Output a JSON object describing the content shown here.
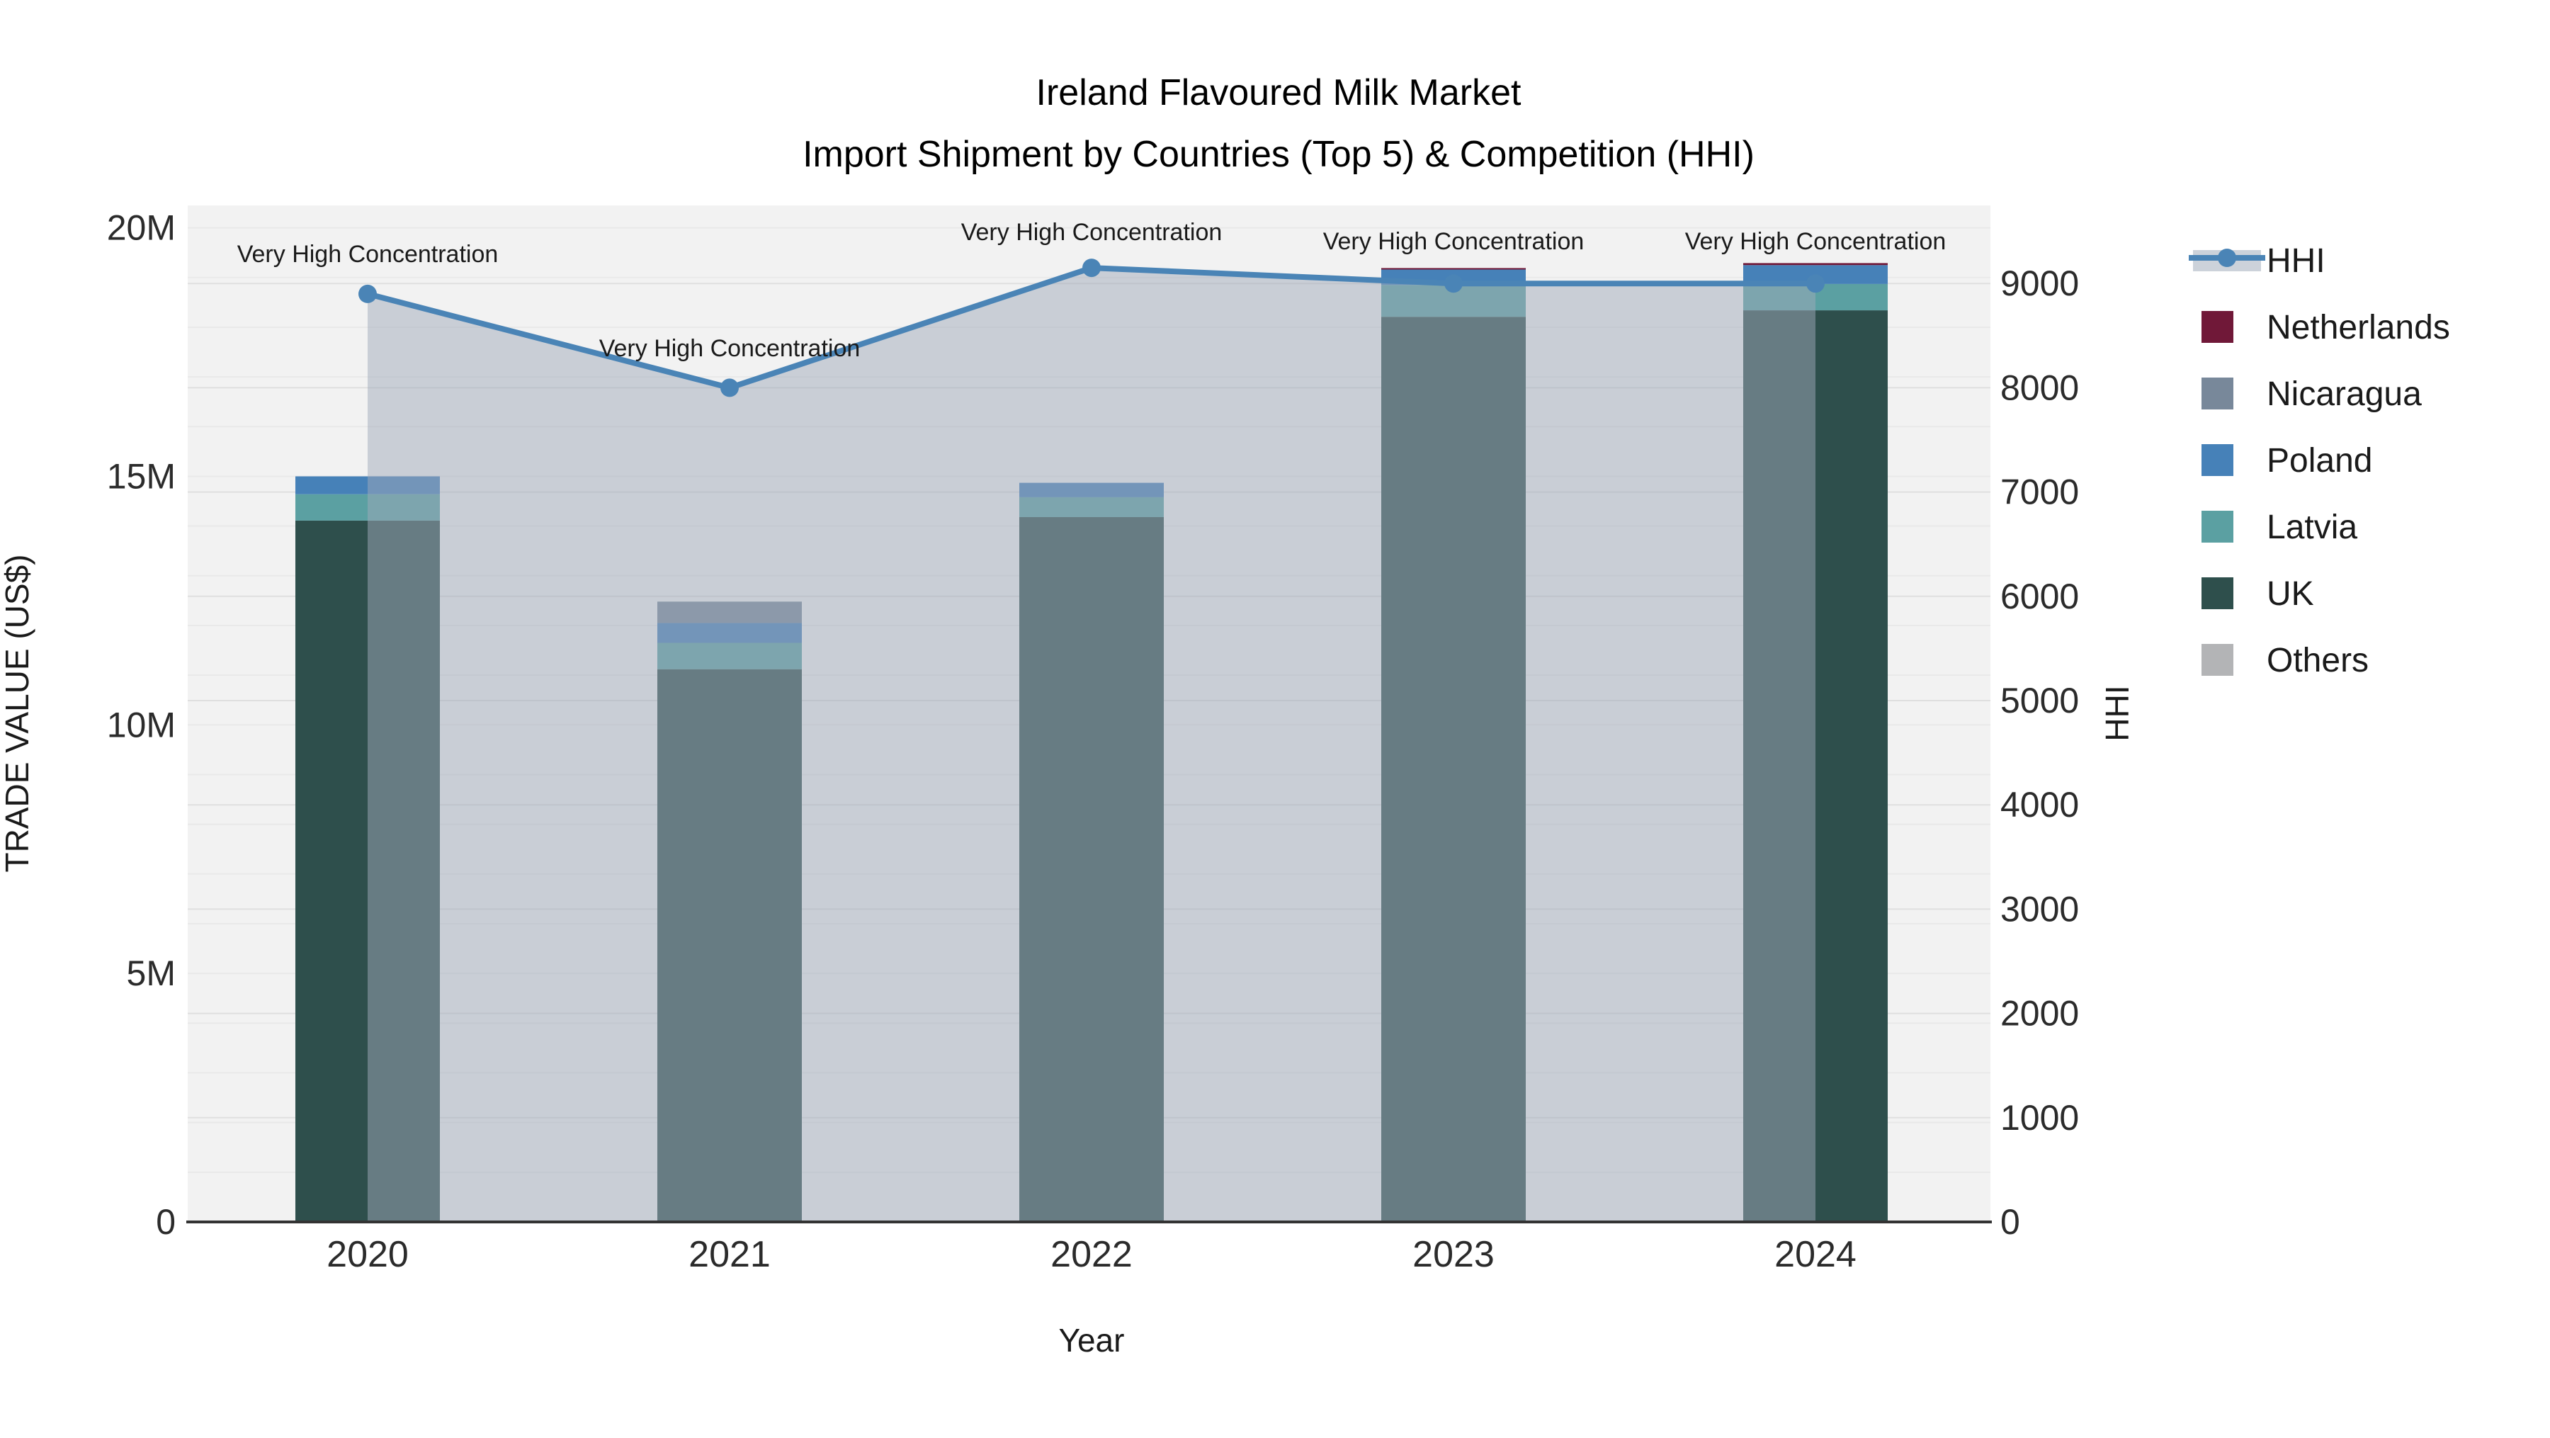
{
  "title": {
    "line1": "Ireland Flavoured Milk Market",
    "line2": "Import Shipment by Countries (Top 5) & Competition (HHI)"
  },
  "axes": {
    "x": {
      "label": "Year",
      "ticks": [
        "2020",
        "2021",
        "2022",
        "2023",
        "2024"
      ]
    },
    "y_left": {
      "label": "TRADE VALUE (US$)",
      "tick_labels": [
        "0",
        "5M",
        "10M",
        "15M",
        "20M"
      ],
      "tick_values_musd": [
        0,
        5,
        10,
        15,
        20
      ],
      "range_musd": [
        0,
        20.4
      ]
    },
    "y_right": {
      "label": "HHI",
      "tick_labels": [
        "0",
        "1000",
        "2000",
        "3000",
        "4000",
        "5000",
        "6000",
        "7000",
        "8000",
        "9000"
      ],
      "tick_values": [
        0,
        1000,
        2000,
        3000,
        4000,
        5000,
        6000,
        7000,
        8000,
        9000
      ],
      "range": [
        0,
        9750
      ]
    }
  },
  "legend": {
    "items": [
      {
        "label": "HHI",
        "type": "line",
        "color": "#4a84b6"
      },
      {
        "label": "Netherlands",
        "type": "swatch",
        "color": "#701838"
      },
      {
        "label": "Nicaragua",
        "type": "swatch",
        "color": "#78889a"
      },
      {
        "label": "Poland",
        "type": "swatch",
        "color": "#4681b8"
      },
      {
        "label": "Latvia",
        "type": "swatch",
        "color": "#5ba0a2"
      },
      {
        "label": "UK",
        "type": "swatch",
        "color": "#2e4f4c"
      },
      {
        "label": "Others",
        "type": "swatch",
        "color": "#b3b4b6"
      }
    ]
  },
  "annotations": [
    {
      "year": "2020",
      "text": "Very High Concentration"
    },
    {
      "year": "2021",
      "text": "Very High Concentration"
    },
    {
      "year": "2022",
      "text": "Very High Concentration"
    },
    {
      "year": "2023",
      "text": "Very High Concentration"
    },
    {
      "year": "2024",
      "text": "Very High Concentration"
    }
  ],
  "colors": {
    "plot_bg": "#f2f2f2",
    "page_bg": "#ffffff",
    "grid_major": "#dfdfdf",
    "grid_minor": "#e9e9e9",
    "axis_line": "#333333",
    "text": "#1a1a1a",
    "tick_text": "#2b2b2b",
    "hhi_line": "#4a84b6",
    "hhi_area": "rgba(160,170,186,0.5)",
    "legend_band": "#ccd2da",
    "netherlands": "#701838",
    "nicaragua": "#78889a",
    "poland": "#4681b8",
    "latvia": "#5ba0a2",
    "uk": "#2e4f4c",
    "others": "#b3b4b6"
  },
  "chart_data": {
    "type": "bar",
    "subtype": "stacked-bar-with-line",
    "title": "Ireland Flavoured Milk Market — Import Shipment by Countries (Top 5) & Competition (HHI)",
    "xlabel": "Year",
    "ylabel_left": "TRADE VALUE (US$)",
    "ylabel_right": "HHI",
    "categories": [
      "2020",
      "2021",
      "2022",
      "2023",
      "2024"
    ],
    "series": [
      {
        "name": "UK",
        "color_key": "uk",
        "values_musd": [
          14.11,
          11.12,
          14.18,
          18.21,
          18.34
        ]
      },
      {
        "name": "Latvia",
        "color_key": "latvia",
        "values_musd": [
          0.53,
          0.53,
          0.4,
          0.64,
          0.53
        ]
      },
      {
        "name": "Poland",
        "color_key": "poland",
        "values_musd": [
          0.36,
          0.4,
          0.29,
          0.31,
          0.38
        ]
      },
      {
        "name": "Nicaragua",
        "color_key": "nicaragua",
        "values_musd": [
          0,
          0.43,
          0,
          0,
          0
        ]
      },
      {
        "name": "Netherlands",
        "color_key": "netherlands",
        "values_musd": [
          0,
          0,
          0,
          0.03,
          0.04
        ]
      },
      {
        "name": "Others",
        "color_key": "others",
        "values_musd": [
          0,
          0,
          0,
          0,
          0
        ]
      }
    ],
    "bar_totals_musd": [
      15.0,
      12.5,
      14.9,
      19.2,
      19.3
    ],
    "line_series": {
      "name": "HHI",
      "values": [
        8900,
        8000,
        9150,
        9000,
        9000
      ],
      "area_fill": true
    },
    "ylim_left_musd": [
      0,
      20.4
    ],
    "ylim_right": [
      0,
      9750
    ],
    "grid": true,
    "legend_position": "right"
  }
}
